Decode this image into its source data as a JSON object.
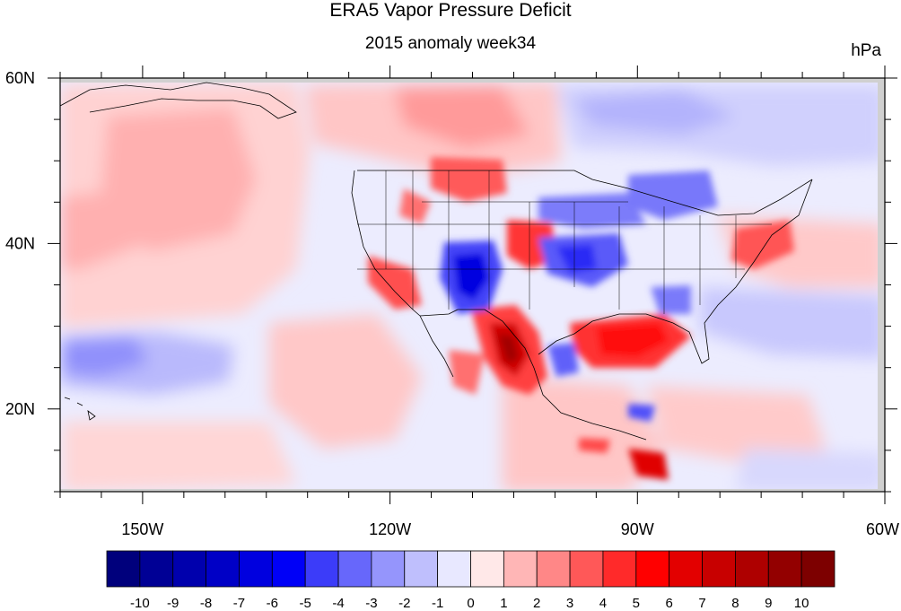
{
  "header": {
    "title": "ERA5 Vapor Pressure Deficit",
    "subtitle": "2015 anomaly week34",
    "units": "hPa"
  },
  "colors": {
    "land_outline": "#000000",
    "missing": "#cfcfcf",
    "neutral": "#e8e8ff"
  },
  "chart_data": {
    "type": "heatmap",
    "title": "ERA5 Vapor Pressure Deficit",
    "subtitle": "2015 anomaly week34",
    "units": "hPa",
    "xlim": [
      -160,
      -60
    ],
    "ylim": [
      10,
      60
    ],
    "x_ticks": [
      {
        "value": -150,
        "label": "150W"
      },
      {
        "value": -120,
        "label": "120W"
      },
      {
        "value": -90,
        "label": "90W"
      },
      {
        "value": -60,
        "label": "60W"
      }
    ],
    "y_ticks": [
      {
        "value": 60,
        "label": "60N"
      },
      {
        "value": 40,
        "label": "40N"
      },
      {
        "value": 20,
        "label": "20N"
      }
    ],
    "colorbar": {
      "levels": [
        "-10",
        "-9",
        "-8",
        "-7",
        "-6",
        "-5",
        "-4",
        "-3",
        "-2",
        "-1",
        "0",
        "1",
        "2",
        "3",
        "4",
        "5",
        "6",
        "7",
        "8",
        "9",
        "10"
      ],
      "colors": [
        "#00007c",
        "#000095",
        "#0000ad",
        "#0000c6",
        "#0000df",
        "#0000f7",
        "#3c3cf9",
        "#6767fb",
        "#9595fc",
        "#bfbffd",
        "#e8e8ff",
        "#ffe8e8",
        "#ffb6b6",
        "#ff8787",
        "#ff5858",
        "#ff2a2a",
        "#ff0000",
        "#e30000",
        "#c80000",
        "#ae0000",
        "#930000",
        "#7d0000"
      ]
    },
    "anomaly_features": [
      {
        "lon": -106.5,
        "lat": 35,
        "value": -7
      },
      {
        "lon": -103,
        "lat": 27,
        "value": 8
      },
      {
        "lon": -90.5,
        "lat": 28,
        "value": 6
      },
      {
        "lon": -100,
        "lat": 39,
        "value": 6
      },
      {
        "lon": -108,
        "lat": 48.5,
        "value": 5
      },
      {
        "lon": -92,
        "lat": 37,
        "value": -4
      },
      {
        "lon": -121,
        "lat": 36,
        "value": 4
      },
      {
        "lon": -95,
        "lat": 41.5,
        "value": -3
      },
      {
        "lon": -85,
        "lat": 46.5,
        "value": -3
      },
      {
        "lon": -73.5,
        "lat": 40.5,
        "value": 4
      },
      {
        "lon": -87,
        "lat": 14,
        "value": 6
      },
      {
        "lon": -154,
        "lat": 26,
        "value": -2
      },
      {
        "lon": -142,
        "lat": 48,
        "value": 2
      },
      {
        "lon": -82,
        "lat": 55,
        "value": -2
      },
      {
        "lon": -118,
        "lat": 56,
        "value": 2
      },
      {
        "lon": -98,
        "lat": 26,
        "value": -3
      }
    ]
  }
}
